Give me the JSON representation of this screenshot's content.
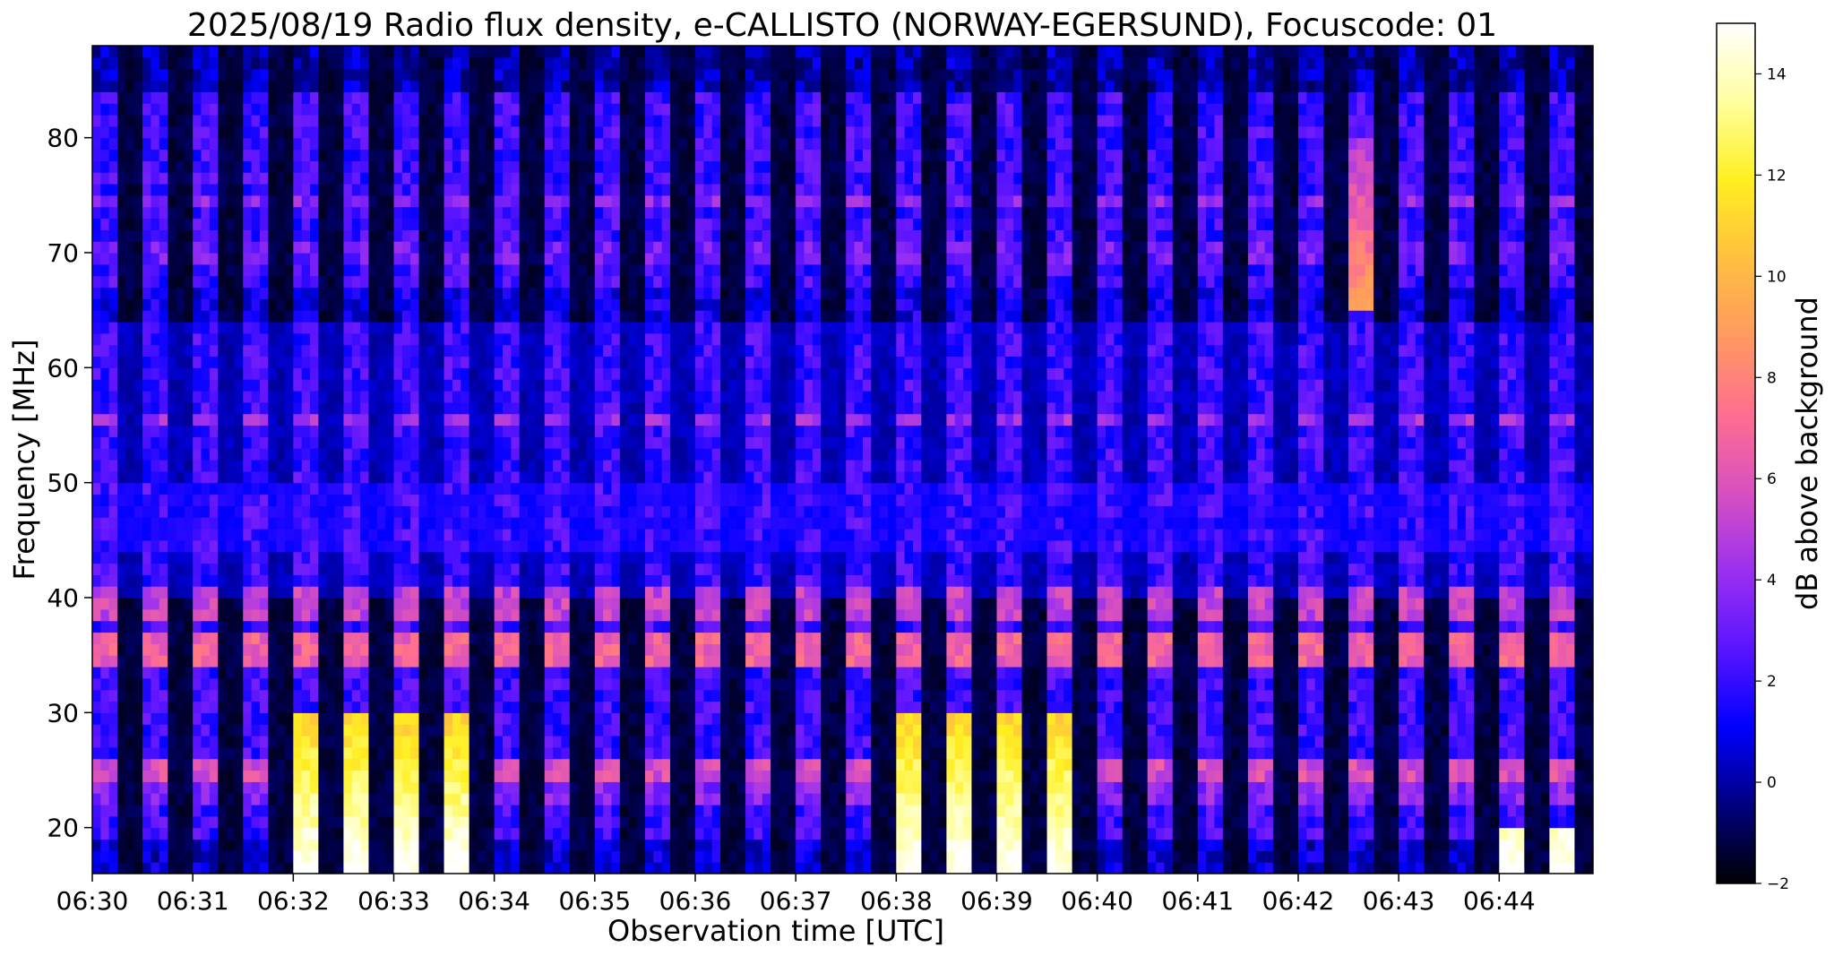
{
  "chart_data": {
    "type": "heatmap",
    "title": "2025/08/19  Radio flux density, e-CALLISTO (NORWAY-EGERSUND), Focuscode: 01",
    "xlabel": "Observation time [UTC]",
    "ylabel": "Frequency [MHz]",
    "x_ticks": [
      "06:30",
      "06:31",
      "06:32",
      "06:33",
      "06:34",
      "06:35",
      "06:36",
      "06:37",
      "06:38",
      "06:39",
      "06:40",
      "06:41",
      "06:42",
      "06:43",
      "06:44"
    ],
    "x_range": [
      "06:30:00",
      "06:44:56"
    ],
    "y_ticks": [
      20,
      30,
      40,
      50,
      60,
      70,
      80
    ],
    "ylim": [
      16,
      88
    ],
    "colorbar": {
      "label": "dB above background",
      "ticks": [
        -2,
        0,
        2,
        4,
        6,
        8,
        10,
        12,
        14
      ],
      "range": [
        -2,
        15
      ],
      "colormap": "gnuplot2",
      "colors": [
        "#000000",
        "#000080",
        "#0000ff",
        "#5a14ff",
        "#9c30f0",
        "#d850c0",
        "#ff6e90",
        "#ff9a60",
        "#ffc040",
        "#ffef20",
        "#ffffa0",
        "#ffffff"
      ]
    },
    "grid": false,
    "stripe_period_s": 30,
    "bright_events": [
      {
        "start": "06:32:00",
        "end": "06:33:50",
        "freq_band_mhz": [
          16,
          30
        ],
        "max_db": 15
      },
      {
        "start": "06:38:00",
        "end": "06:39:50",
        "freq_band_mhz": [
          16,
          30
        ],
        "max_db": 15
      },
      {
        "start": "06:44:00",
        "end": "06:44:56",
        "freq_band_mhz": [
          16,
          20
        ],
        "max_db": 15
      },
      {
        "start": "06:42:20",
        "end": "06:43:00",
        "freq_band_mhz": [
          65,
          80
        ],
        "max_db": 9
      }
    ]
  }
}
